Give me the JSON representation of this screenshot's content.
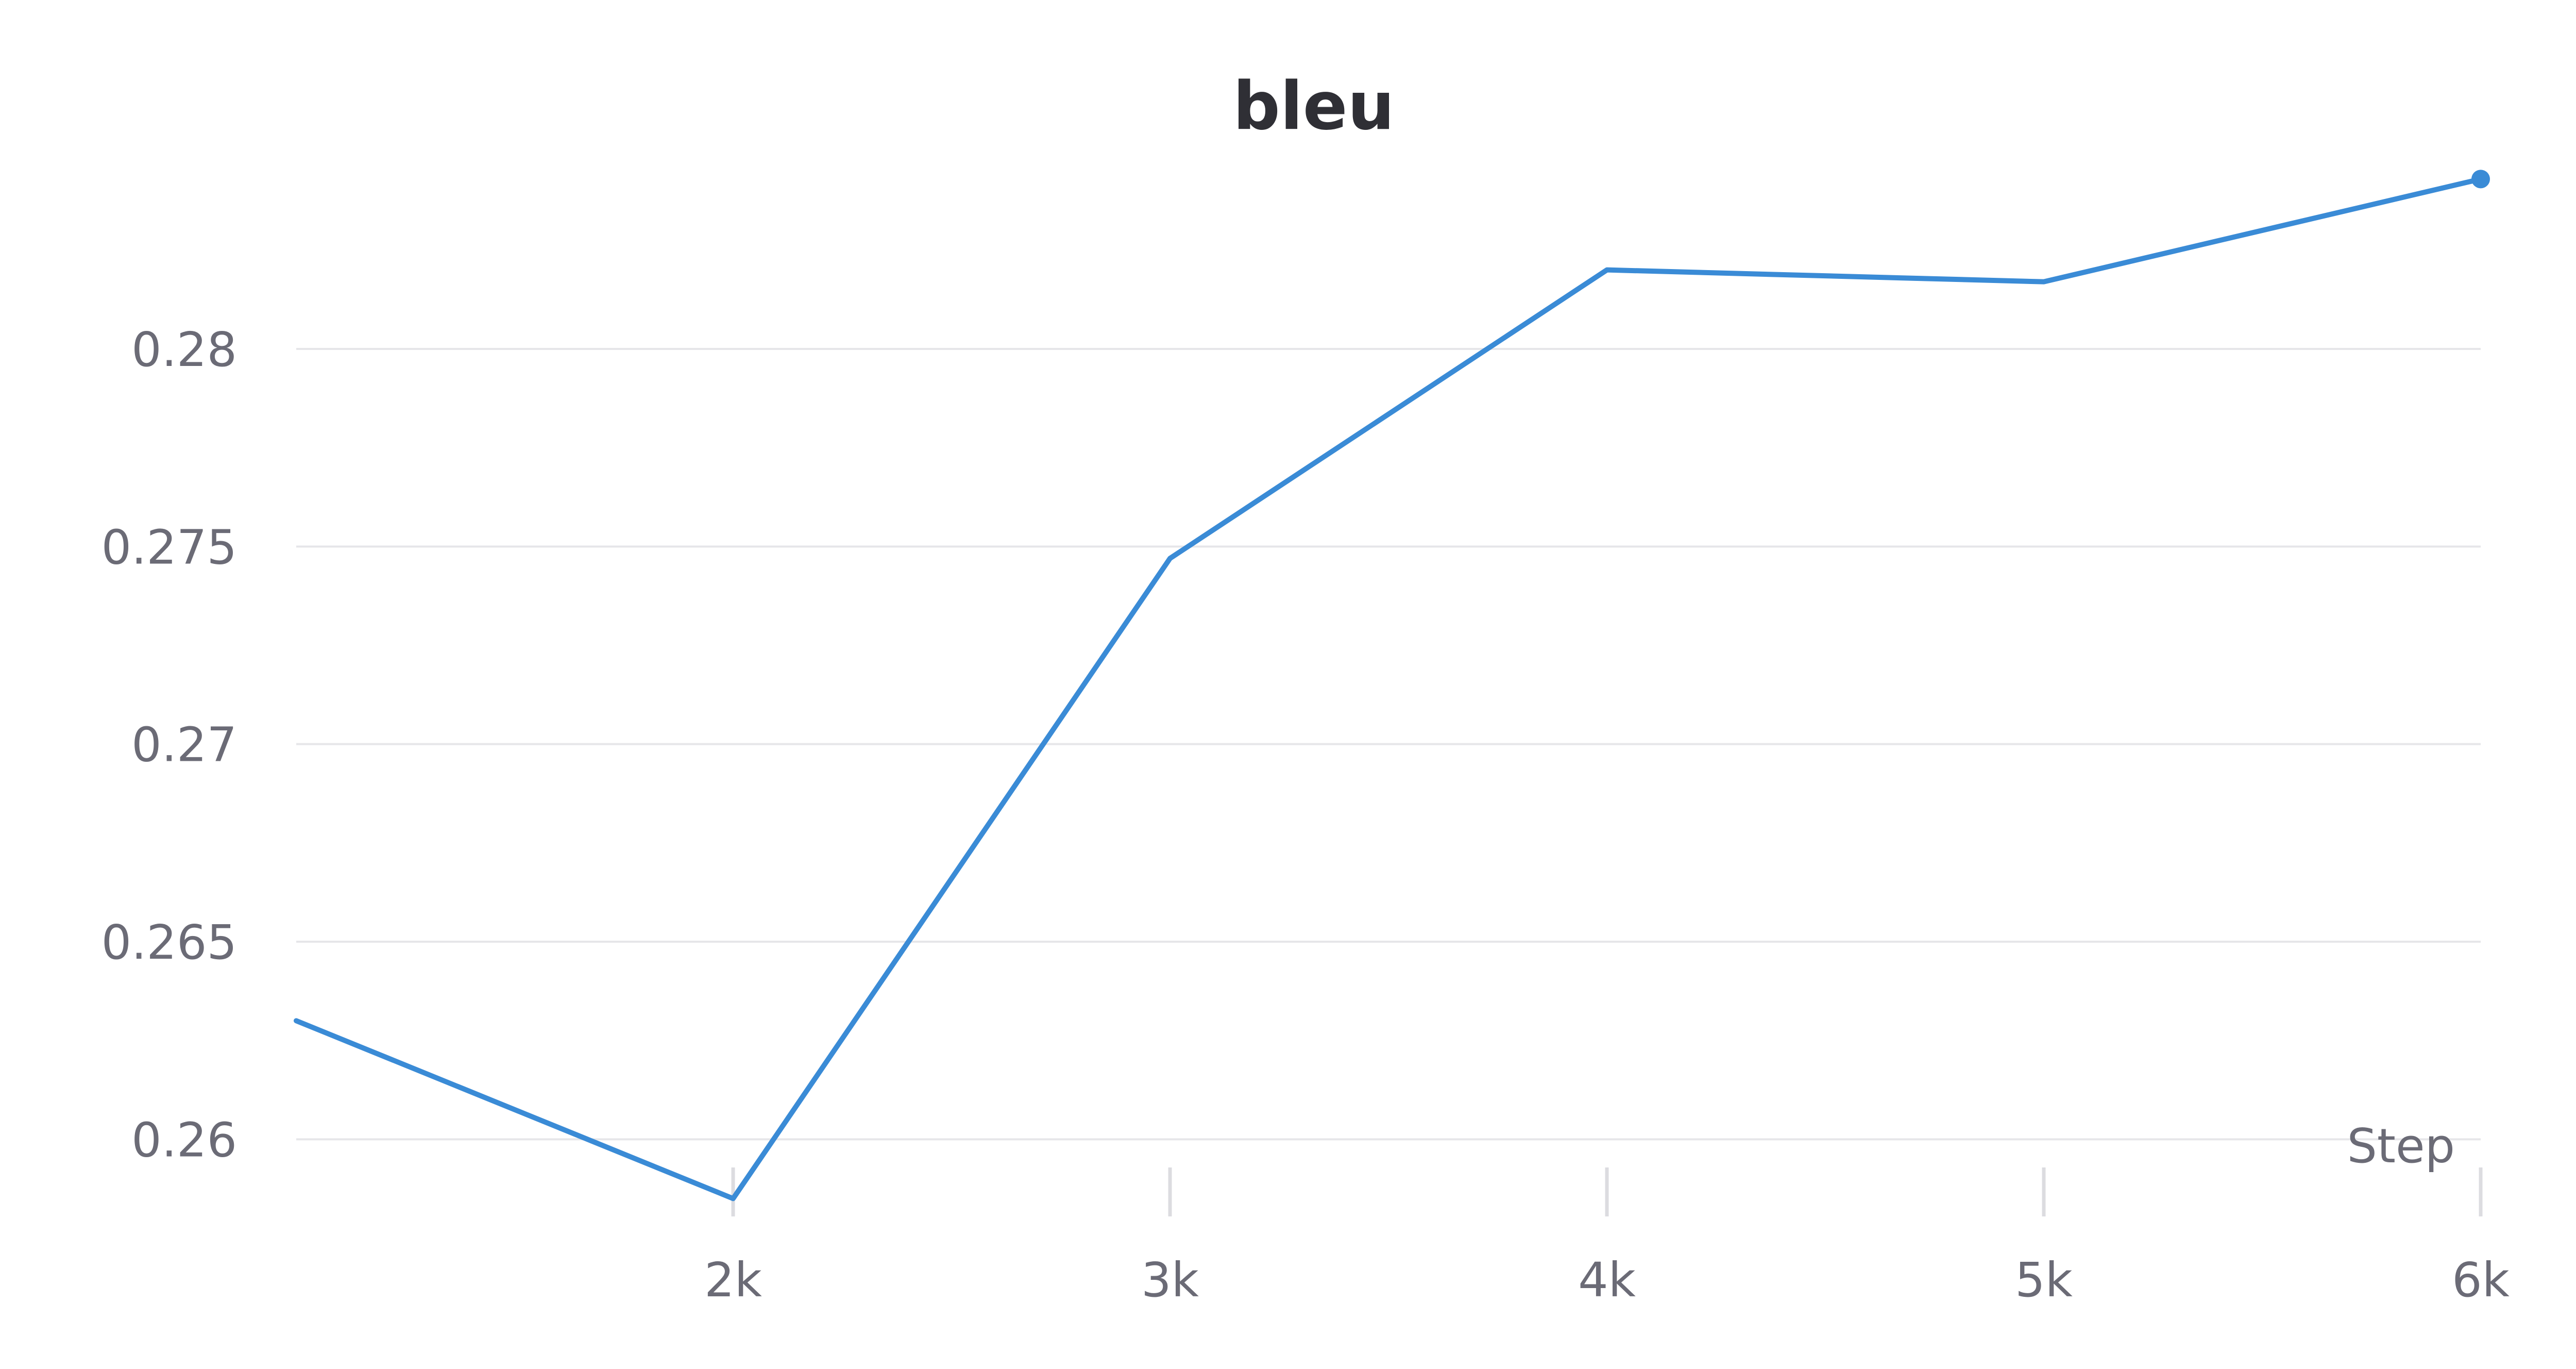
{
  "chart_data": {
    "type": "line",
    "title": "bleu",
    "xlabel": "Step",
    "ylabel": "",
    "xlim": [
      1000,
      6000
    ],
    "ylim": [
      0.2587,
      0.2842
    ],
    "x_ticks": [
      2000,
      3000,
      4000,
      5000,
      6000
    ],
    "x_tick_labels": [
      "2k",
      "3k",
      "4k",
      "5k",
      "6k"
    ],
    "y_ticks": [
      0.26,
      0.265,
      0.27,
      0.275,
      0.28
    ],
    "y_tick_labels": [
      "0.26",
      "0.265",
      "0.27",
      "0.275",
      "0.28"
    ],
    "grid": true,
    "legend": "none",
    "series": [
      {
        "color": "#3a8bd6",
        "x": [
          1000,
          2000,
          3000,
          4000,
          5000,
          6000
        ],
        "y": [
          0.263,
          0.2585,
          0.2747,
          0.282,
          0.2817,
          0.2843
        ]
      }
    ]
  }
}
